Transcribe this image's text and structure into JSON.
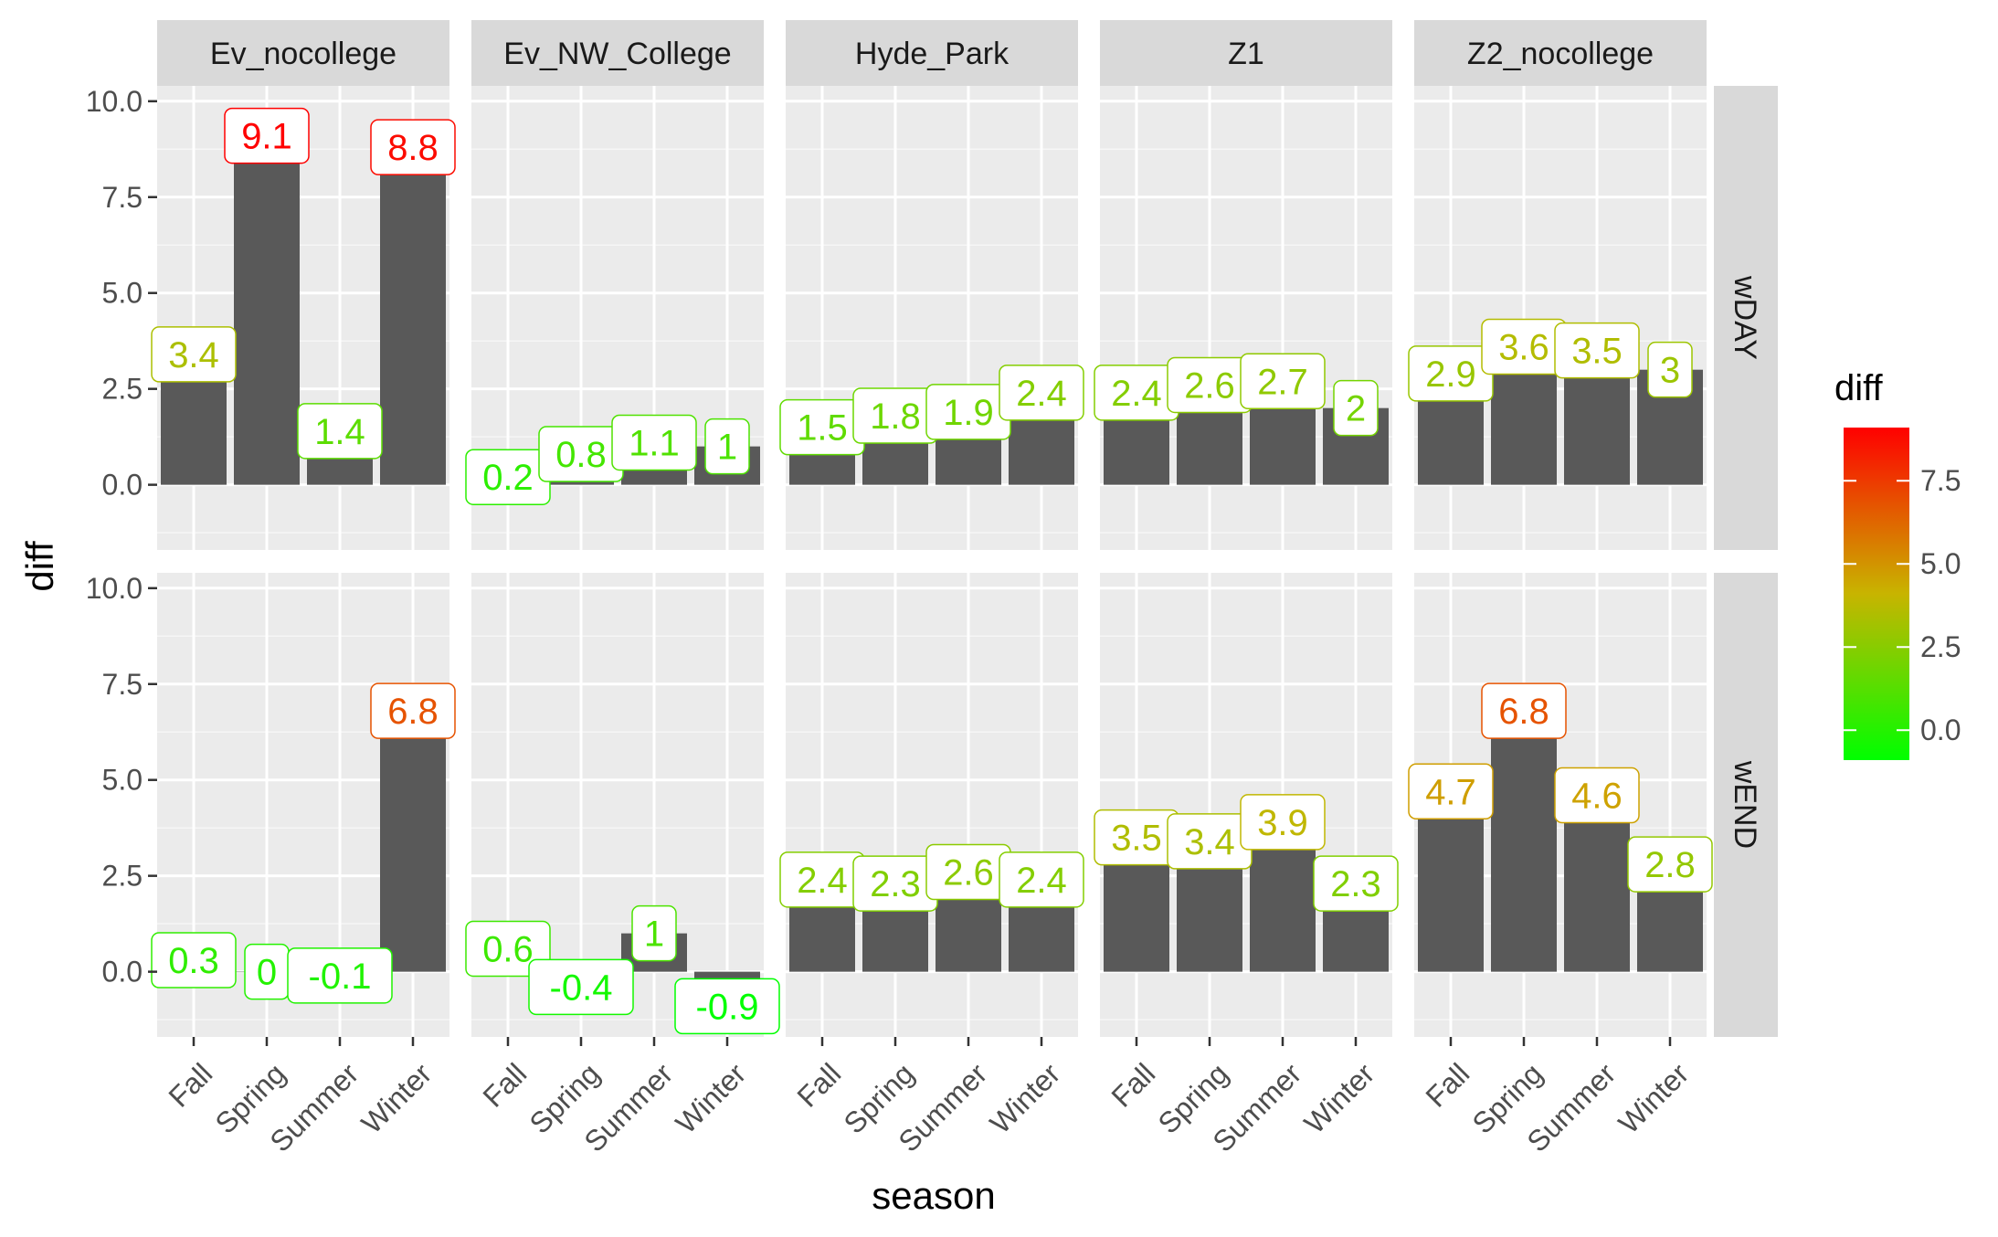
{
  "chart_data": {
    "type": "bar",
    "facet_columns": [
      "Ev_nocollege",
      "Ev_NW_College",
      "Hyde_Park",
      "Z1",
      "Z2_nocollege"
    ],
    "facet_rows": [
      "wDAY",
      "wEND"
    ],
    "categories": [
      "Fall",
      "Spring",
      "Summer",
      "Winter"
    ],
    "panels": [
      {
        "column": "Ev_nocollege",
        "row": "wDAY",
        "values": [
          3.4,
          9.1,
          1.4,
          8.8
        ],
        "labels": [
          "3.4",
          "9.1",
          "1.4",
          "8.8"
        ]
      },
      {
        "column": "Ev_NW_College",
        "row": "wDAY",
        "values": [
          0.2,
          0.8,
          1.1,
          1.0
        ],
        "labels": [
          "0.2",
          "0.8",
          "1.1",
          "1"
        ]
      },
      {
        "column": "Hyde_Park",
        "row": "wDAY",
        "values": [
          1.5,
          1.8,
          1.9,
          2.4
        ],
        "labels": [
          "1.5",
          "1.8",
          "1.9",
          "2.4"
        ]
      },
      {
        "column": "Z1",
        "row": "wDAY",
        "values": [
          2.4,
          2.6,
          2.7,
          2.0
        ],
        "labels": [
          "2.4",
          "2.6",
          "2.7",
          "2"
        ]
      },
      {
        "column": "Z2_nocollege",
        "row": "wDAY",
        "values": [
          2.9,
          3.6,
          3.5,
          3.0
        ],
        "labels": [
          "2.9",
          "3.6",
          "3.5",
          "3"
        ]
      },
      {
        "column": "Ev_nocollege",
        "row": "wEND",
        "values": [
          0.3,
          0.0,
          -0.1,
          6.8
        ],
        "labels": [
          "0.3",
          "0",
          "-0.1",
          "6.8"
        ]
      },
      {
        "column": "Ev_NW_College",
        "row": "wEND",
        "values": [
          0.6,
          -0.4,
          1.0,
          -0.9
        ],
        "labels": [
          "0.6",
          "-0.4",
          "1",
          "-0.9"
        ]
      },
      {
        "column": "Hyde_Park",
        "row": "wEND",
        "values": [
          2.4,
          2.3,
          2.6,
          2.4
        ],
        "labels": [
          "2.4",
          "2.3",
          "2.6",
          "2.4"
        ]
      },
      {
        "column": "Z1",
        "row": "wEND",
        "values": [
          3.5,
          3.4,
          3.9,
          2.3
        ],
        "labels": [
          "3.5",
          "3.4",
          "3.9",
          "2.3"
        ]
      },
      {
        "column": "Z2_nocollege",
        "row": "wEND",
        "values": [
          4.7,
          6.8,
          4.6,
          2.8
        ],
        "labels": [
          "4.7",
          "6.8",
          "4.6",
          "2.8"
        ]
      }
    ],
    "xlabel": "season",
    "ylabel": "diff",
    "ylim": [
      -1.7,
      10.4
    ],
    "yticks": [
      0.0,
      2.5,
      5.0,
      7.5,
      10.0
    ],
    "ytick_labels": [
      "0.0",
      "2.5",
      "5.0",
      "7.5",
      "10.0"
    ],
    "legend": {
      "title": "diff",
      "ticks": [
        0.0,
        2.5,
        5.0,
        7.5
      ],
      "tick_labels": [
        "0.0",
        "2.5",
        "5.0",
        "7.5"
      ],
      "range": [
        -0.9,
        9.1
      ],
      "colors": [
        "#00ff00",
        "#ff0000"
      ],
      "placement": "right"
    },
    "grid": true,
    "bar_color": "#595959",
    "panel_background": "#ebebeb",
    "strip_background": "#d9d9d9"
  }
}
